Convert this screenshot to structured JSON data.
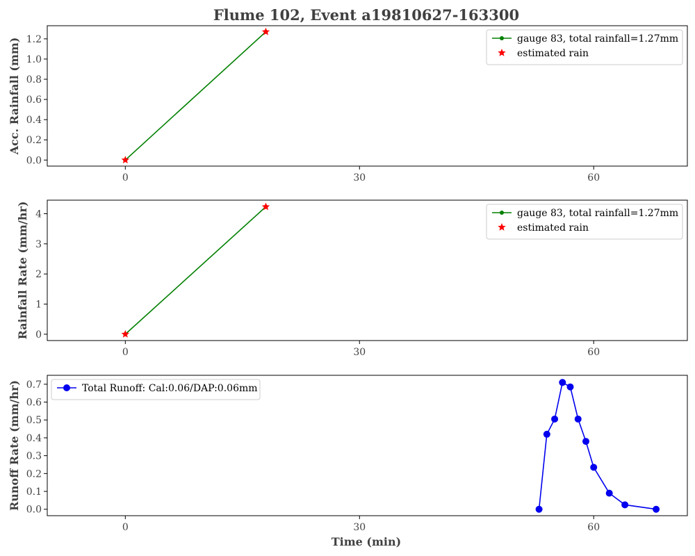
{
  "figure": {
    "title": "Flume 102, Event a19810627-163300"
  },
  "colors": {
    "gauge_line": "#008000",
    "estimated_star": "#ff0000",
    "runoff_line": "#0000ee",
    "text": "#404040"
  },
  "chart_data": [
    {
      "type": "line",
      "panel": "accumulated-rainfall",
      "ylabel": "Acc. Rainfall (mm)",
      "xlabel": "",
      "xlim": [
        -10,
        72
      ],
      "ylim": [
        -0.06,
        1.33
      ],
      "xticks": [
        0,
        30,
        60
      ],
      "yticks": [
        0.0,
        0.2,
        0.4,
        0.6,
        0.8,
        1.0,
        1.2
      ],
      "ytick_labels": [
        "0.0",
        "0.2",
        "0.4",
        "0.6",
        "0.8",
        "1.0",
        "1.2"
      ],
      "grid": false,
      "legend_position": "top-right",
      "series": [
        {
          "name": "gauge 83, total rainfall=1.27mm",
          "style": "line-dot",
          "color": "#008000",
          "x": [
            0,
            18
          ],
          "y": [
            0.0,
            1.27
          ]
        },
        {
          "name": "estimated rain",
          "style": "star",
          "color": "#ff0000",
          "x": [
            0,
            18
          ],
          "y": [
            0.0,
            1.27
          ]
        }
      ]
    },
    {
      "type": "line",
      "panel": "rainfall-rate",
      "ylabel": "Rainfall Rate (mm/hr)",
      "xlabel": "",
      "xlim": [
        -10,
        72
      ],
      "ylim": [
        -0.21,
        4.45
      ],
      "xticks": [
        0,
        30,
        60
      ],
      "yticks": [
        0,
        1,
        2,
        3,
        4
      ],
      "ytick_labels": [
        "0",
        "1",
        "2",
        "3",
        "4"
      ],
      "grid": false,
      "legend_position": "top-right",
      "series": [
        {
          "name": "gauge 83, total rainfall=1.27mm",
          "style": "line-dot",
          "color": "#008000",
          "x": [
            0,
            18
          ],
          "y": [
            0.0,
            4.23
          ]
        },
        {
          "name": "estimated rain",
          "style": "star",
          "color": "#ff0000",
          "x": [
            0,
            18
          ],
          "y": [
            0.0,
            4.23
          ]
        }
      ]
    },
    {
      "type": "line",
      "panel": "runoff-rate",
      "ylabel": "Runoff Rate (mm/hr)",
      "xlabel": "Time (min)",
      "xlim": [
        -10,
        72
      ],
      "ylim": [
        -0.036,
        0.75
      ],
      "xticks": [
        0,
        30,
        60
      ],
      "yticks": [
        0.0,
        0.1,
        0.2,
        0.3,
        0.4,
        0.5,
        0.6,
        0.7
      ],
      "ytick_labels": [
        "0.0",
        "0.1",
        "0.2",
        "0.3",
        "0.4",
        "0.5",
        "0.6",
        "0.7"
      ],
      "grid": false,
      "legend_position": "top-left",
      "series": [
        {
          "name": "Total Runoff: Cal:0.06/DAP:0.06mm",
          "style": "line-bigdot",
          "color": "#0000ee",
          "x": [
            53,
            54,
            55,
            56,
            57,
            58,
            59,
            60,
            62,
            64,
            68
          ],
          "y": [
            0.0,
            0.42,
            0.505,
            0.71,
            0.685,
            0.505,
            0.38,
            0.235,
            0.09,
            0.025,
            0.0
          ]
        }
      ]
    }
  ]
}
